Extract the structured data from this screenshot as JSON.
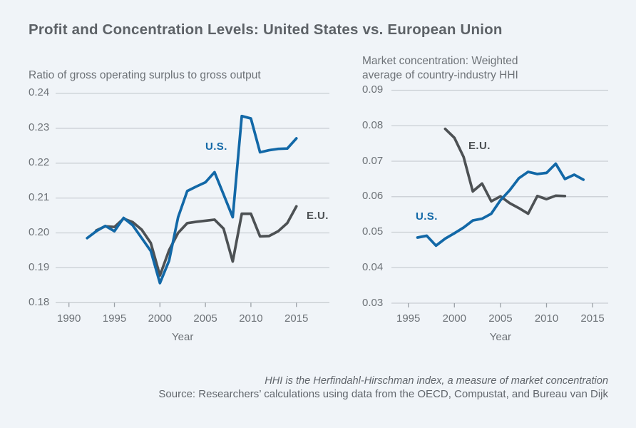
{
  "page": {
    "title": "Profit and Concentration Levels: United States vs. European Union",
    "footer": {
      "note": "HHI is the Herfindahl-Hirschman index, a measure of market concentration",
      "source": "Source: Researchers’ calculations using data from the OECD, Compustat, and Bureau van Dijk"
    }
  },
  "colors": {
    "background": "#f0f4f8",
    "grid": "#c9ced3",
    "tick_mark": "#9aa0a6",
    "us_line": "#1268a7",
    "eu_line": "#4d5154",
    "title_text": "#5d6267",
    "body_text": "#6d7277"
  },
  "chart_data": [
    {
      "type": "line",
      "subtitle": "Ratio of gross operating surplus to gross output",
      "xlabel": "Year",
      "ylim": [
        0.18,
        0.24
      ],
      "grid": true,
      "legend_position": "inline-labels",
      "yticks": [
        {
          "value": 0.18,
          "label": "0.18"
        },
        {
          "value": 0.19,
          "label": "0.19"
        },
        {
          "value": 0.2,
          "label": "0.20"
        },
        {
          "value": 0.21,
          "label": "0.21"
        },
        {
          "value": 0.22,
          "label": "0.22"
        },
        {
          "value": 0.23,
          "label": "0.23"
        },
        {
          "value": 0.24,
          "label": "0.24"
        }
      ],
      "xticks": [
        {
          "value": 1990,
          "label": "1990"
        },
        {
          "value": 1995,
          "label": "1995"
        },
        {
          "value": 2000,
          "label": "2000"
        },
        {
          "value": 2005,
          "label": "2005"
        },
        {
          "value": 2010,
          "label": "2010"
        },
        {
          "value": 2015,
          "label": "2015"
        }
      ],
      "series": [
        {
          "name": "E.U.",
          "label": "E.U.",
          "color": "#4d5154",
          "points": [
            [
              1993,
              0.2007
            ],
            [
              1994,
              0.2019
            ],
            [
              1995,
              0.2017
            ],
            [
              1996,
              0.2041
            ],
            [
              1997,
              0.2031
            ],
            [
              1998,
              0.2009
            ],
            [
              1999,
              0.1971
            ],
            [
              2000,
              0.1878
            ],
            [
              2001,
              0.195
            ],
            [
              2002,
              0.2
            ],
            [
              2003,
              0.2028
            ],
            [
              2004,
              0.2032
            ],
            [
              2005,
              0.2035
            ],
            [
              2006,
              0.2038
            ],
            [
              2007,
              0.2012
            ],
            [
              2008,
              0.1918
            ],
            [
              2009,
              0.2055
            ],
            [
              2010,
              0.2055
            ],
            [
              2011,
              0.199
            ],
            [
              2012,
              0.1991
            ],
            [
              2013,
              0.2005
            ],
            [
              2014,
              0.2028
            ],
            [
              2015,
              0.2076
            ]
          ]
        },
        {
          "name": "U.S.",
          "label": "U.S.",
          "color": "#1268a7",
          "points": [
            [
              1992,
              0.1985
            ],
            [
              1993,
              0.2005
            ],
            [
              1994,
              0.202
            ],
            [
              1995,
              0.2005
            ],
            [
              1996,
              0.2043
            ],
            [
              1997,
              0.2022
            ],
            [
              1998,
              0.1985
            ],
            [
              1999,
              0.1948
            ],
            [
              2000,
              0.1856
            ],
            [
              2001,
              0.192
            ],
            [
              2002,
              0.2045
            ],
            [
              2003,
              0.212
            ],
            [
              2004,
              0.2133
            ],
            [
              2005,
              0.2145
            ],
            [
              2006,
              0.2174
            ],
            [
              2007,
              0.211
            ],
            [
              2008,
              0.2045
            ],
            [
              2009,
              0.2335
            ],
            [
              2010,
              0.2328
            ],
            [
              2011,
              0.2231
            ],
            [
              2012,
              0.2237
            ],
            [
              2013,
              0.2241
            ],
            [
              2014,
              0.2242
            ],
            [
              2015,
              0.2271
            ]
          ]
        }
      ]
    },
    {
      "type": "line",
      "subtitle": "Market concentration: Weighted average of country-industry HHI",
      "xlabel": "Year",
      "ylim": [
        0.03,
        0.09
      ],
      "grid": true,
      "legend_position": "inline-labels",
      "yticks": [
        {
          "value": 0.03,
          "label": "0.03"
        },
        {
          "value": 0.04,
          "label": "0.04"
        },
        {
          "value": 0.05,
          "label": "0.05"
        },
        {
          "value": 0.06,
          "label": "0.06"
        },
        {
          "value": 0.07,
          "label": "0.07"
        },
        {
          "value": 0.08,
          "label": "0.08"
        },
        {
          "value": 0.09,
          "label": "0.09"
        }
      ],
      "xticks": [
        {
          "value": 1995,
          "label": "1995"
        },
        {
          "value": 2000,
          "label": "2000"
        },
        {
          "value": 2005,
          "label": "2005"
        },
        {
          "value": 2010,
          "label": "2010"
        },
        {
          "value": 2015,
          "label": "2015"
        }
      ],
      "series": [
        {
          "name": "E.U.",
          "label": "E.U.",
          "color": "#4d5154",
          "points": [
            [
              1999,
              0.0791
            ],
            [
              2000,
              0.0766
            ],
            [
              2001,
              0.0712
            ],
            [
              2002,
              0.0615
            ],
            [
              2003,
              0.0637
            ],
            [
              2004,
              0.0587
            ],
            [
              2005,
              0.0601
            ],
            [
              2006,
              0.0582
            ],
            [
              2007,
              0.0568
            ],
            [
              2008,
              0.0552
            ],
            [
              2009,
              0.0602
            ],
            [
              2010,
              0.0593
            ],
            [
              2011,
              0.0603
            ],
            [
              2012,
              0.0602
            ]
          ]
        },
        {
          "name": "U.S.",
          "label": "U.S.",
          "color": "#1268a7",
          "points": [
            [
              1996,
              0.0485
            ],
            [
              1997,
              0.049
            ],
            [
              1998,
              0.0462
            ],
            [
              1999,
              0.0482
            ],
            [
              2000,
              0.0497
            ],
            [
              2001,
              0.0513
            ],
            [
              2002,
              0.0533
            ],
            [
              2003,
              0.0538
            ],
            [
              2004,
              0.0552
            ],
            [
              2005,
              0.059
            ],
            [
              2006,
              0.0618
            ],
            [
              2007,
              0.0652
            ],
            [
              2008,
              0.067
            ],
            [
              2009,
              0.0664
            ],
            [
              2010,
              0.0667
            ],
            [
              2011,
              0.0693
            ],
            [
              2012,
              0.065
            ],
            [
              2013,
              0.0662
            ],
            [
              2014,
              0.0648
            ]
          ]
        }
      ]
    }
  ]
}
